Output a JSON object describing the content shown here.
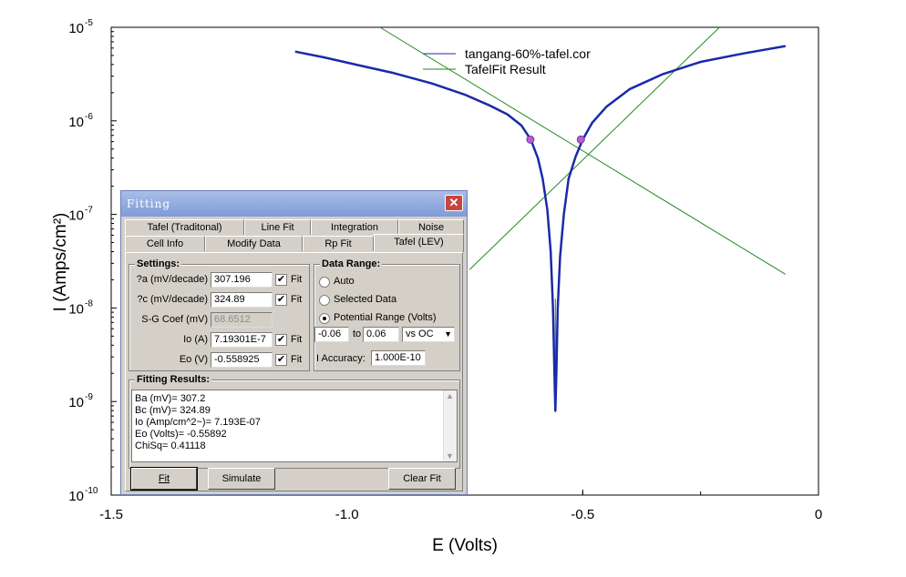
{
  "chart_data": {
    "type": "line",
    "xlabel": "E (Volts)",
    "ylabel": "I (Amps/cm²)",
    "xlim": [
      -1.5,
      0
    ],
    "ylim_exponents": [
      -10,
      -5
    ],
    "log_y": true,
    "x_ticks": [
      {
        "value": -1.5,
        "label": "-1.5"
      },
      {
        "value": -1.0,
        "label": "-1.0"
      },
      {
        "value": -0.5,
        "label": "-0.5"
      },
      {
        "value": 0,
        "label": "0"
      }
    ],
    "y_ticks": [
      {
        "value": -5,
        "base": "10",
        "exp": "-5"
      },
      {
        "value": -6,
        "base": "10",
        "exp": "-6"
      },
      {
        "value": -7,
        "base": "10",
        "exp": "-7"
      },
      {
        "value": -8,
        "base": "10",
        "exp": "-8"
      },
      {
        "value": -9,
        "base": "10",
        "exp": "-9"
      },
      {
        "value": -10,
        "base": "10",
        "exp": "-10"
      }
    ],
    "series": [
      {
        "name": "tangang-60%-tafel.cor",
        "color": "#1a2aa8",
        "x": [
          -1.11,
          -1.05,
          -0.98,
          -0.9,
          -0.82,
          -0.75,
          -0.7,
          -0.66,
          -0.63,
          -0.61,
          -0.595,
          -0.585,
          -0.575,
          -0.568,
          -0.563,
          -0.56,
          -0.558,
          -0.556,
          -0.553,
          -0.548,
          -0.54,
          -0.53,
          -0.515,
          -0.5,
          -0.48,
          -0.45,
          -0.4,
          -0.33,
          -0.25,
          -0.16,
          -0.07
        ],
        "log10_i": [
          -5.26,
          -5.32,
          -5.4,
          -5.49,
          -5.6,
          -5.72,
          -5.83,
          -5.93,
          -6.05,
          -6.2,
          -6.4,
          -6.62,
          -6.95,
          -7.4,
          -8.0,
          -8.7,
          -9.1,
          -8.7,
          -8.0,
          -7.45,
          -7.0,
          -6.62,
          -6.38,
          -6.2,
          -6.02,
          -5.85,
          -5.66,
          -5.5,
          -5.37,
          -5.28,
          -5.2
        ]
      },
      {
        "name": "TafelFit Result",
        "color": "#1f8a1f",
        "segments": [
          {
            "x": [
              -0.93,
              -0.07
            ],
            "log10_i": [
              -5.0,
              -7.64
            ]
          },
          {
            "x": [
              -0.74,
              -0.21
            ],
            "log10_i": [
              -7.59,
              -5.0
            ]
          },
          {
            "x": [
              -0.558,
              -0.558
            ],
            "log10_i": [
              -7.9,
              -8.7
            ]
          }
        ]
      }
    ],
    "markers": [
      {
        "x": -0.611,
        "log10_i": -6.2,
        "color": "#cc55cc"
      },
      {
        "x": -0.504,
        "log10_i": -6.2,
        "color": "#cc55cc"
      }
    ],
    "legend_position": "top-right"
  },
  "dialog": {
    "title": "Fitting",
    "close_glyph": "✕",
    "tabs_row1": [
      "Tafel (Traditonal)",
      "Line Fit",
      "Integration",
      "Noise"
    ],
    "tabs_row2": [
      "Cell Info",
      "Modify Data",
      "Rp Fit",
      "Tafel (LEV)"
    ],
    "active_tab": "Tafel (LEV)",
    "settings": {
      "label": "Settings:",
      "rows": [
        {
          "label": "?a (mV/decade)",
          "value": "307.196",
          "fit_checked": true,
          "fit_label": "Fit"
        },
        {
          "label": "?c (mV/decade)",
          "value": "324.89",
          "fit_checked": true,
          "fit_label": "Fit"
        },
        {
          "label": "S-G Coef (mV)",
          "value": "68.6512",
          "disabled": true
        },
        {
          "label": "Io (A)",
          "value": "7.19301E-7",
          "fit_checked": true,
          "fit_label": "Fit"
        },
        {
          "label": "Eo (V)",
          "value": "-0.558925",
          "fit_checked": true,
          "fit_label": "Fit"
        }
      ]
    },
    "data_range": {
      "label": "Data Range:",
      "options": [
        "Auto",
        "Selected Data",
        "Potential Range (Volts)"
      ],
      "selected": "Potential Range (Volts)",
      "from": "-0.06",
      "to_label": "to",
      "to": "0.06",
      "vs": "vs OC",
      "accuracy_label": "I Accuracy:",
      "accuracy": "1.000E-10"
    },
    "results": {
      "label": "Fitting Results:",
      "lines": [
        "Ba (mV)= 307.2",
        "Bc (mV)= 324.89",
        "Io (Amp/cm^2~)= 7.193E-07",
        "Eo (Volts)= -0.55892",
        "ChiSq= 0.41118"
      ]
    },
    "buttons": {
      "fit": "Fit",
      "simulate": "Simulate",
      "clear_fit": "Clear Fit"
    }
  }
}
